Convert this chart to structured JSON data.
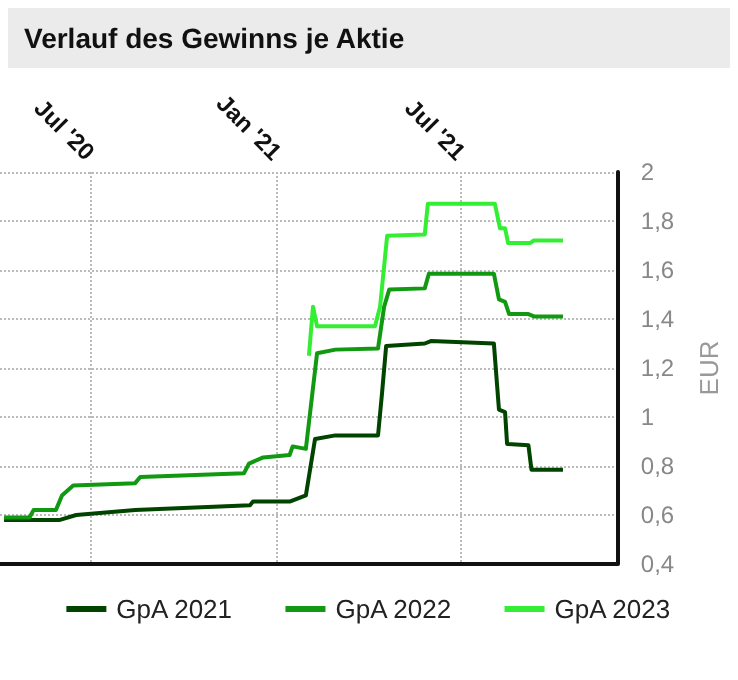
{
  "chart_data": {
    "type": "line",
    "title": "Verlauf des Gewinns je Aktie",
    "ylabel": "EUR",
    "xlim": [
      "2020-04-03",
      "2021-12-01"
    ],
    "xticks": [
      {
        "value": "2020-07-01",
        "label": "Jul '20"
      },
      {
        "value": "2021-01-01",
        "label": "Jan '21"
      },
      {
        "value": "2021-07-01",
        "label": "Jul '21"
      }
    ],
    "ylim": [
      0.4,
      2
    ],
    "yticks": [
      {
        "value": 0.4,
        "label": "0,4"
      },
      {
        "value": 0.6,
        "label": "0,6"
      },
      {
        "value": 0.8,
        "label": "0,8"
      },
      1,
      {
        "value": 1.2,
        "label": "1,2"
      },
      {
        "value": 1.4,
        "label": "1,4"
      },
      {
        "value": 1.6,
        "label": "1,6"
      },
      {
        "value": 1.8,
        "label": "1,8"
      },
      2
    ],
    "grid": true,
    "legend": "bottom",
    "marker": "none",
    "line_style": "solid",
    "series": [
      {
        "name": "GpA 2021",
        "color": "#004400",
        "x": [
          "2020-04-07",
          "2020-06-01",
          "2020-06-17",
          "2020-08-14",
          "2020-12-05",
          "2020-12-08",
          "2021-01-13",
          "2021-01-29",
          "2021-02-07",
          "2021-02-27",
          "2021-04-10",
          "2021-04-14",
          "2021-04-18",
          "2021-05-26",
          "2021-06-01",
          "2021-08-02",
          "2021-08-07",
          "2021-08-13",
          "2021-08-15",
          "2021-09-05",
          "2021-09-08",
          "2021-10-09"
        ],
        "values": [
          0.58,
          0.58,
          0.6,
          0.62,
          0.64,
          0.655,
          0.655,
          0.68,
          0.91,
          0.925,
          0.925,
          1.1,
          1.29,
          1.3,
          1.31,
          1.3,
          1.03,
          1.02,
          0.89,
          0.885,
          0.785,
          0.785
        ]
      },
      {
        "name": "GpA 2022",
        "color": "#119911",
        "x": [
          "2020-04-07",
          "2020-05-02",
          "2020-05-06",
          "2020-05-28",
          "2020-06-03",
          "2020-06-14",
          "2020-08-14",
          "2020-08-19",
          "2020-11-29",
          "2020-12-04",
          "2020-12-18",
          "2021-01-13",
          "2021-01-16",
          "2021-01-29",
          "2021-02-09",
          "2021-02-27",
          "2021-04-10",
          "2021-04-16",
          "2021-04-21",
          "2021-05-26",
          "2021-05-30",
          "2021-08-02",
          "2021-08-07",
          "2021-08-13",
          "2021-08-17",
          "2021-09-05",
          "2021-09-11",
          "2021-10-09"
        ],
        "values": [
          0.59,
          0.59,
          0.62,
          0.62,
          0.68,
          0.72,
          0.73,
          0.755,
          0.77,
          0.81,
          0.835,
          0.845,
          0.88,
          0.87,
          1.26,
          1.275,
          1.28,
          1.45,
          1.52,
          1.525,
          1.585,
          1.585,
          1.48,
          1.47,
          1.42,
          1.42,
          1.41,
          1.41
        ]
      },
      {
        "name": "GpA 2023",
        "color": "#33ee33",
        "x": [
          "2021-02-01",
          "2021-02-05",
          "2021-02-09",
          "2021-04-07",
          "2021-04-12",
          "2021-04-19",
          "2021-05-26",
          "2021-05-29",
          "2021-08-03",
          "2021-08-08",
          "2021-08-13",
          "2021-08-16",
          "2021-09-07",
          "2021-09-10",
          "2021-10-09"
        ],
        "values": [
          1.25,
          1.45,
          1.37,
          1.37,
          1.45,
          1.74,
          1.745,
          1.87,
          1.87,
          1.77,
          1.77,
          1.71,
          1.71,
          1.72,
          1.72
        ]
      }
    ]
  }
}
